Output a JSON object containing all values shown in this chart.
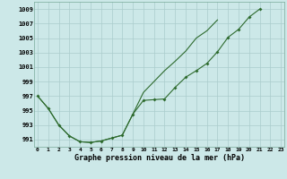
{
  "title": "Graphe pression niveau de la mer (hPa)",
  "x_values": [
    0,
    1,
    2,
    3,
    4,
    5,
    6,
    7,
    8,
    9,
    10,
    11,
    12,
    13,
    14,
    15,
    16,
    17,
    18,
    19,
    20,
    21,
    22,
    23
  ],
  "line_color": "#2d6a2d",
  "bg_color": "#cce8e8",
  "grid_color": "#aacccc",
  "ylim": [
    990.0,
    1010.0
  ],
  "yticks": [
    991,
    993,
    995,
    997,
    999,
    1001,
    1003,
    1005,
    1007,
    1009
  ],
  "marker_size": 2.0,
  "line_width": 0.8,
  "y_main": [
    997,
    995.3,
    993,
    991.5,
    990.7,
    990.6,
    990.8,
    991.2,
    991.6,
    994.5,
    996.4,
    996.5,
    996.6,
    998.2,
    999.6,
    1000.5,
    1001.5,
    1003.1,
    1005.1,
    1006.2,
    1007.9,
    1009.0,
    null,
    null
  ],
  "y_upper": [
    997,
    995.3,
    993,
    991.5,
    990.7,
    990.6,
    990.8,
    991.2,
    991.6,
    994.5,
    997.5,
    999.0,
    1000.5,
    1001.8,
    1003.2,
    1005.0,
    1006.0,
    1007.5,
    null,
    null,
    null,
    null,
    null,
    null
  ],
  "y_lower_end": [
    null,
    null,
    null,
    null,
    null,
    null,
    null,
    null,
    null,
    null,
    996.4,
    996.5,
    996.6,
    998.2,
    999.6,
    1000.5,
    1001.5,
    1003.1,
    1005.1,
    1006.2,
    1007.9,
    1009.0,
    null,
    null
  ]
}
